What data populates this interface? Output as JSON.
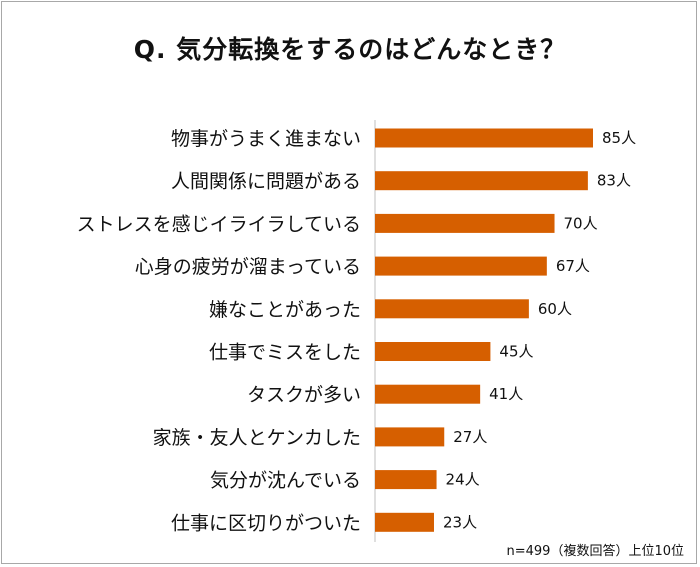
{
  "title": "Q. 気分転換をするのはどんなとき？",
  "note": "n=499（複数回答）上位10位",
  "chart_data": {
    "type": "bar",
    "orientation": "horizontal",
    "title": "Q. 気分転換をするのはどんなとき？",
    "categories": [
      "物事がうまく進まない",
      "人間関係に問題がある",
      "ストレスを感じイライラしている",
      "心身の疲労が溜まっている",
      "嫌なことがあった",
      "仕事でミスをした",
      "タスクが多い",
      "家族・友人とケンカした",
      "気分が沈んでいる",
      "仕事に区切りがついた"
    ],
    "values": [
      85,
      83,
      70,
      67,
      60,
      45,
      41,
      27,
      24,
      23
    ],
    "value_labels": [
      "85人",
      "83人",
      "70人",
      "67人",
      "60人",
      "45人",
      "41人",
      "27人",
      "24人",
      "23人"
    ],
    "bar_color": "#d65f00",
    "axis_color": "#bfbfbf",
    "xlim": [
      0,
      85
    ],
    "grid": false,
    "legend": "none"
  }
}
